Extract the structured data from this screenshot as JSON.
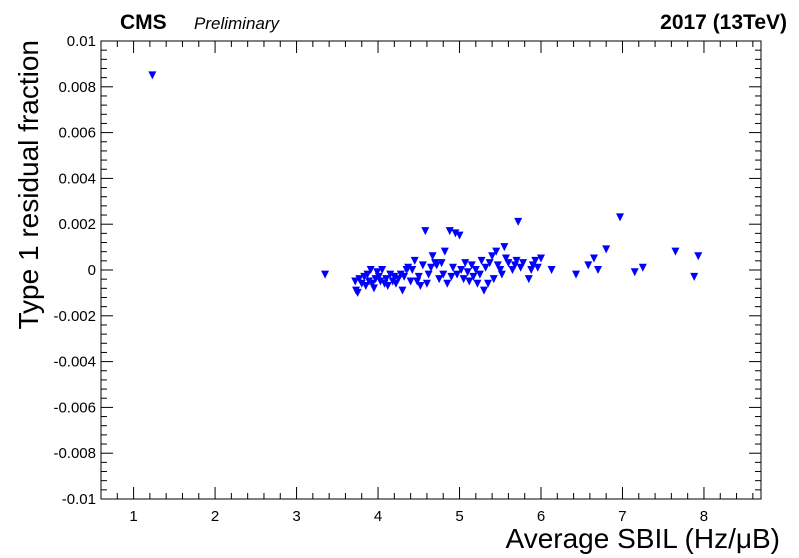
{
  "header": {
    "experiment": "CMS",
    "status": "Preliminary",
    "run_info": "2017  (13TeV)"
  },
  "chart_data": {
    "type": "scatter",
    "title": "",
    "xlabel": "Average SBIL (Hz/μB)",
    "ylabel": "Type 1 residual fraction",
    "xlim": [
      0.6,
      8.7
    ],
    "ylim": [
      -0.01,
      0.01
    ],
    "x_ticks": [
      1,
      2,
      3,
      4,
      5,
      6,
      7,
      8
    ],
    "y_ticks": [
      -0.01,
      -0.008,
      -0.006,
      -0.004,
      -0.002,
      0,
      0.002,
      0.004,
      0.006,
      0.008,
      0.01
    ],
    "y_tick_labels": [
      "-0.01",
      "-0.008",
      "-0.006",
      "-0.004",
      "-0.002",
      "0",
      "0.002",
      "0.004",
      "0.006",
      "0.008",
      "0.01"
    ],
    "grid": false,
    "marker": "down-triangle",
    "marker_color": "#0000ff",
    "series": [
      {
        "points": [
          [
            1.23,
            0.0085
          ],
          [
            3.35,
            -0.0002
          ],
          [
            3.72,
            -0.0005
          ],
          [
            3.73,
            -0.0009
          ],
          [
            3.75,
            -0.001
          ],
          [
            3.77,
            -0.0004
          ],
          [
            3.8,
            -0.0006
          ],
          [
            3.83,
            -0.0003
          ],
          [
            3.85,
            -0.0007
          ],
          [
            3.87,
            -0.0002
          ],
          [
            3.89,
            -0.0005
          ],
          [
            3.91,
            0.0
          ],
          [
            3.93,
            -0.0006
          ],
          [
            3.95,
            -0.0008
          ],
          [
            3.97,
            -0.0004
          ],
          [
            3.99,
            -0.0001
          ],
          [
            4.01,
            -0.0003
          ],
          [
            4.03,
            -0.0005
          ],
          [
            4.05,
            0.0
          ],
          [
            4.08,
            -0.0006
          ],
          [
            4.1,
            -0.0004
          ],
          [
            4.12,
            -0.0007
          ],
          [
            4.15,
            -0.0002
          ],
          [
            4.18,
            -0.0005
          ],
          [
            4.2,
            -0.0003
          ],
          [
            4.22,
            -0.0006
          ],
          [
            4.25,
            -0.0004
          ],
          [
            4.28,
            -0.0002
          ],
          [
            4.3,
            -0.0009
          ],
          [
            4.32,
            -0.0003
          ],
          [
            4.35,
            0.0
          ],
          [
            4.37,
            0.0001
          ],
          [
            4.4,
            -0.0005
          ],
          [
            4.42,
            0.0
          ],
          [
            4.45,
            0.0004
          ],
          [
            4.48,
            -0.0005
          ],
          [
            4.5,
            -0.0003
          ],
          [
            4.52,
            -0.0007
          ],
          [
            4.55,
            0.0002
          ],
          [
            4.58,
            0.0017
          ],
          [
            4.6,
            -0.0006
          ],
          [
            4.62,
            -0.0002
          ],
          [
            4.65,
            0.0001
          ],
          [
            4.67,
            0.0006
          ],
          [
            4.7,
            0.0003
          ],
          [
            4.72,
            0.0002
          ],
          [
            4.75,
            -0.0004
          ],
          [
            4.78,
            0.0003
          ],
          [
            4.8,
            -0.0002
          ],
          [
            4.82,
            0.0008
          ],
          [
            4.85,
            -0.0006
          ],
          [
            4.88,
            0.0017
          ],
          [
            4.9,
            -0.0003
          ],
          [
            4.92,
            0.0001
          ],
          [
            4.95,
            0.0016
          ],
          [
            4.97,
            -0.0002
          ],
          [
            5.0,
            0.0015
          ],
          [
            5.02,
            0.0
          ],
          [
            5.05,
            -0.0004
          ],
          [
            5.07,
            0.0003
          ],
          [
            5.1,
            -0.0001
          ],
          [
            5.12,
            -0.0005
          ],
          [
            5.15,
            0.0002
          ],
          [
            5.17,
            -0.0003
          ],
          [
            5.2,
            0.0
          ],
          [
            5.22,
            -0.0006
          ],
          [
            5.25,
            -0.0002
          ],
          [
            5.27,
            0.0004
          ],
          [
            5.3,
            -0.0009
          ],
          [
            5.32,
            0.0001
          ],
          [
            5.35,
            -0.0006
          ],
          [
            5.37,
            0.0003
          ],
          [
            5.4,
            0.0006
          ],
          [
            5.42,
            -0.0004
          ],
          [
            5.45,
            0.0008
          ],
          [
            5.47,
            0.0002
          ],
          [
            5.5,
            0.0
          ],
          [
            5.52,
            -0.0002
          ],
          [
            5.55,
            0.001
          ],
          [
            5.57,
            0.0005
          ],
          [
            5.6,
            0.0003
          ],
          [
            5.65,
            0.0
          ],
          [
            5.68,
            0.0002
          ],
          [
            5.7,
            0.0004
          ],
          [
            5.72,
            0.0021
          ],
          [
            5.75,
            0.0001
          ],
          [
            5.78,
            0.0003
          ],
          [
            5.85,
            -0.0004
          ],
          [
            5.88,
            0.0
          ],
          [
            5.9,
            0.0002
          ],
          [
            5.93,
            0.0004
          ],
          [
            5.96,
            0.0001
          ],
          [
            6.0,
            0.0005
          ],
          [
            6.13,
            0.0
          ],
          [
            6.43,
            -0.0002
          ],
          [
            6.58,
            0.0002
          ],
          [
            6.65,
            0.0005
          ],
          [
            6.7,
            0.0
          ],
          [
            6.8,
            0.0009
          ],
          [
            6.97,
            0.0023
          ],
          [
            7.15,
            -0.0001
          ],
          [
            7.25,
            0.0001
          ],
          [
            7.65,
            0.0008
          ],
          [
            7.88,
            -0.0003
          ],
          [
            7.93,
            0.0006
          ]
        ]
      }
    ]
  }
}
